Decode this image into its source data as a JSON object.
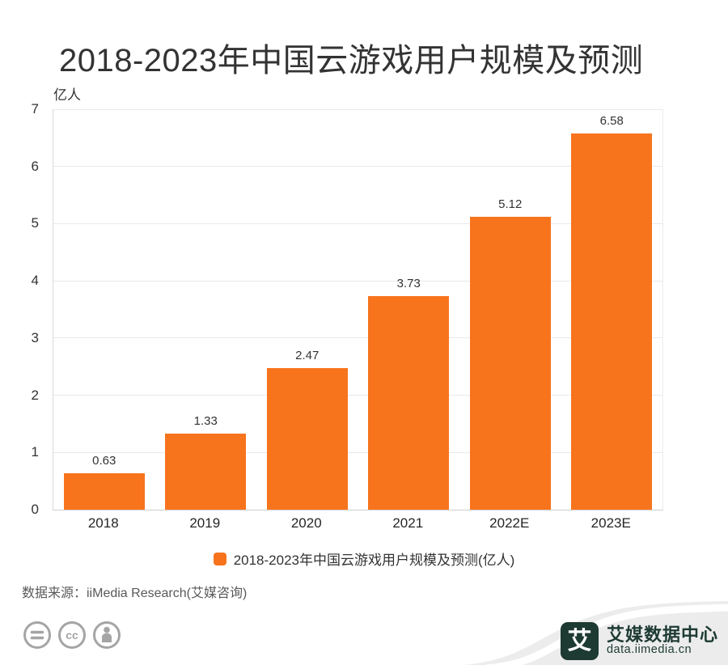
{
  "chart_data": {
    "type": "bar",
    "title": "2018-2023年中国云游戏用户规模及预测",
    "ylabel_unit": "亿人",
    "categories": [
      "2018",
      "2019",
      "2020",
      "2021",
      "2022E",
      "2023E"
    ],
    "values": [
      0.63,
      1.33,
      2.47,
      3.73,
      5.12,
      6.58
    ],
    "value_labels": [
      "0.63",
      "1.33",
      "2.47",
      "3.73",
      "5.12",
      "6.58"
    ],
    "ylim": [
      0,
      7
    ],
    "ytick_step": 1,
    "grid": true,
    "legend": [
      "2018-2023年中国云游戏用户规模及预测(亿人)"
    ],
    "legend_position": "bottom",
    "bar_color": "#f7741d"
  },
  "footer": {
    "source": "数据来源：iiMedia Research(艾媒咨询)",
    "license_icons": [
      "equals-icon",
      "cc-icon",
      "person-icon"
    ],
    "brand": {
      "logo_char": "艾",
      "name": "艾媒数据中心",
      "site": "data.iimedia.cn"
    }
  },
  "colors": {
    "bar": "#f7741d",
    "brand_dark": "#1d3a33",
    "wave_gray": "#ececec",
    "grid": "#e9e9e9",
    "text_primary": "#333333",
    "text_secondary": "#595959",
    "icon_gray": "#a5a5a5"
  }
}
